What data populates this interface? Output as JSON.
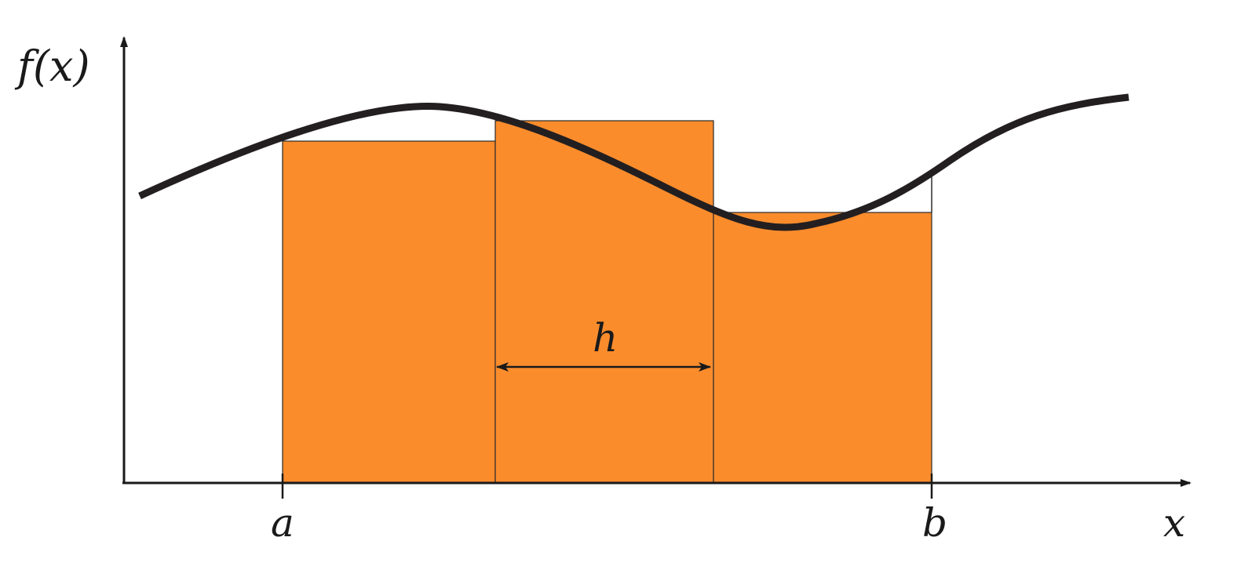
{
  "labels": {
    "y_axis": "f(x)",
    "x_axis": "x",
    "a": "a",
    "b": "b",
    "h": "h"
  },
  "colors": {
    "rect_fill": "#fb8c2c",
    "curve": "#231f20",
    "axes": "#1a1a1a"
  }
}
